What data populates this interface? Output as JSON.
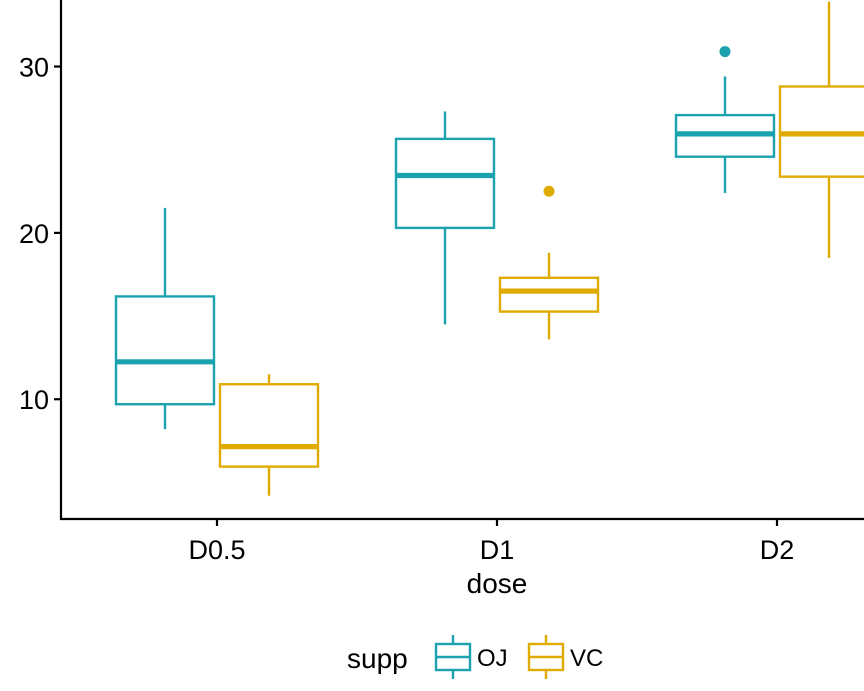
{
  "chart_data": {
    "type": "boxplot",
    "title": "",
    "xlabel": "dose",
    "ylabel": "",
    "categories": [
      "D0.5",
      "D1",
      "D2"
    ],
    "ylim": [
      2.8,
      34
    ],
    "yticks": [
      10,
      20,
      30
    ],
    "grid": false,
    "legend": {
      "title": "supp",
      "position": "bottom"
    },
    "series": [
      {
        "name": "OJ",
        "color": "#1AA3AE",
        "boxes": [
          {
            "category": "D0.5",
            "min": 8.2,
            "q1": 9.7,
            "median": 12.25,
            "q3": 16.18,
            "max": 21.5,
            "outliers": []
          },
          {
            "category": "D1",
            "min": 14.5,
            "q1": 20.3,
            "median": 23.45,
            "q3": 25.65,
            "max": 27.3,
            "outliers": []
          },
          {
            "category": "D2",
            "min": 22.4,
            "q1": 24.58,
            "median": 25.95,
            "q3": 27.08,
            "max": 29.4,
            "outliers": [
              30.9
            ]
          }
        ]
      },
      {
        "name": "VC",
        "color": "#E0AB00",
        "boxes": [
          {
            "category": "D0.5",
            "min": 4.2,
            "q1": 5.95,
            "median": 7.15,
            "q3": 10.9,
            "max": 11.5,
            "outliers": []
          },
          {
            "category": "D1",
            "min": 13.6,
            "q1": 15.27,
            "median": 16.5,
            "q3": 17.3,
            "max": 18.8,
            "outliers": [
              22.5
            ]
          },
          {
            "category": "D2",
            "min": 18.5,
            "q1": 23.38,
            "median": 25.95,
            "q3": 28.8,
            "max": 33.9,
            "outliers": []
          }
        ]
      }
    ]
  }
}
